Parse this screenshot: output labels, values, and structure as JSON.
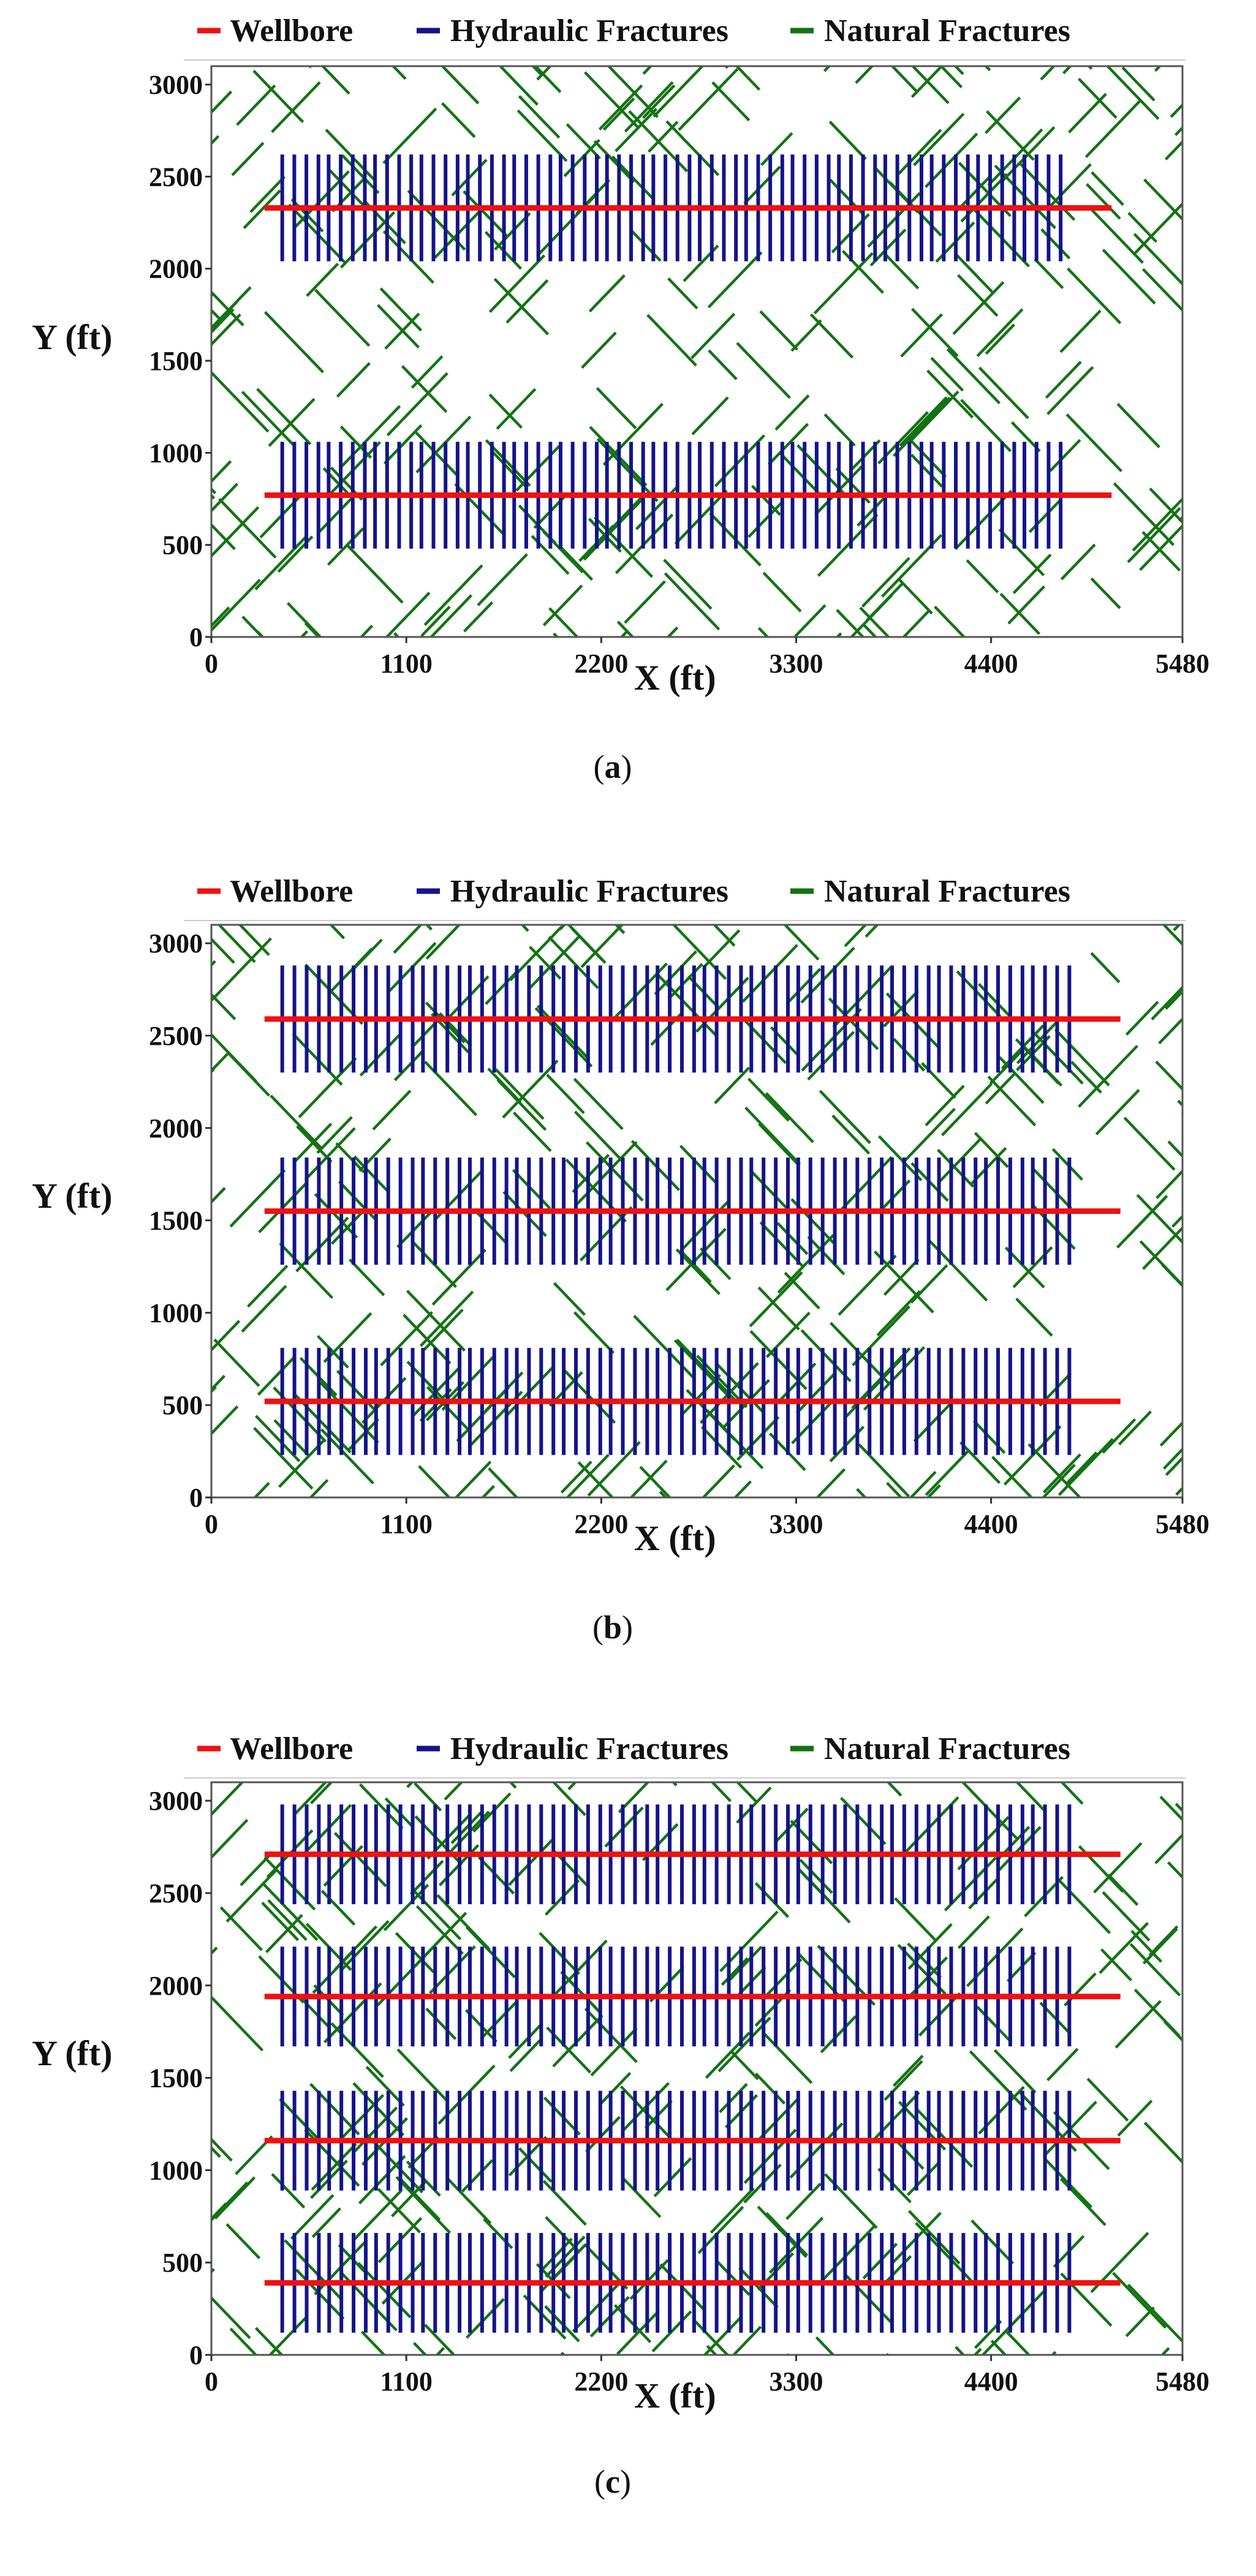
{
  "legend": [
    {
      "key": "wellbore",
      "label": "Wellbore",
      "color": "#ee1111"
    },
    {
      "key": "hydraulic",
      "label": "Hydraulic Fractures",
      "color": "#14148a"
    },
    {
      "key": "natural",
      "label": "Natural Fractures",
      "color": "#137313"
    }
  ],
  "chart_data": [
    {
      "type": "scatter",
      "panel": "a",
      "caption_open": "(",
      "caption_letter": "a",
      "caption_close": ")",
      "xlabel": "X (ft)",
      "ylabel": "Y (ft)",
      "xlim": [
        0,
        5480
      ],
      "ylim": [
        0,
        3100
      ],
      "x_ticks": [
        "0",
        "1100",
        "2200",
        "3300",
        "4400",
        "5480"
      ],
      "y_ticks": [
        "0",
        "500",
        "1000",
        "1500",
        "2000",
        "2500",
        "3000"
      ],
      "wellbores": [
        {
          "y": 770,
          "x_start": 300,
          "x_end": 5080,
          "frac_half_length": 290
        },
        {
          "y": 2330,
          "x_start": 300,
          "x_end": 5080,
          "frac_half_length": 290
        }
      ],
      "hydraulic_fractures": {
        "stages": 17,
        "clusters_per_stage": 4,
        "first_x": 400,
        "last_x": 4850
      },
      "natural_fractures": {
        "count": 300,
        "length_range_ft": [
          220,
          480
        ],
        "orientations_deg": [
          45,
          135
        ]
      }
    },
    {
      "type": "scatter",
      "panel": "b",
      "caption_open": "(",
      "caption_letter": "b",
      "caption_close": ")",
      "xlabel": "X (ft)",
      "ylabel": "Y (ft)",
      "xlim": [
        0,
        5480
      ],
      "ylim": [
        0,
        3100
      ],
      "x_ticks": [
        "0",
        "1100",
        "2200",
        "3300",
        "4400",
        "5480"
      ],
      "y_ticks": [
        "0",
        "500",
        "1000",
        "1500",
        "2000",
        "2500",
        "3000"
      ],
      "wellbores": [
        {
          "y": 520,
          "x_start": 300,
          "x_end": 5130,
          "frac_half_length": 290
        },
        {
          "y": 1550,
          "x_start": 300,
          "x_end": 5130,
          "frac_half_length": 290
        },
        {
          "y": 2590,
          "x_start": 300,
          "x_end": 5130,
          "frac_half_length": 290
        }
      ],
      "hydraulic_fractures": {
        "stages": 17,
        "clusters_per_stage": 4,
        "first_x": 400,
        "last_x": 4900
      },
      "natural_fractures": {
        "count": 300,
        "length_range_ft": [
          220,
          480
        ],
        "orientations_deg": [
          45,
          135
        ]
      }
    },
    {
      "type": "scatter",
      "panel": "c",
      "caption_open": "(",
      "caption_letter": "c",
      "caption_close": ")",
      "xlabel": "X (ft)",
      "ylabel": "Y (ft)",
      "xlim": [
        0,
        5480
      ],
      "ylim": [
        0,
        3100
      ],
      "x_ticks": [
        "0",
        "1100",
        "2200",
        "3300",
        "4400",
        "5480"
      ],
      "y_ticks": [
        "0",
        "500",
        "1000",
        "1500",
        "2000",
        "2500",
        "3000"
      ],
      "wellbores": [
        {
          "y": 390,
          "x_start": 300,
          "x_end": 5130,
          "frac_half_length": 270
        },
        {
          "y": 1160,
          "x_start": 300,
          "x_end": 5130,
          "frac_half_length": 270
        },
        {
          "y": 1940,
          "x_start": 300,
          "x_end": 5130,
          "frac_half_length": 270
        },
        {
          "y": 2710,
          "x_start": 300,
          "x_end": 5130,
          "frac_half_length": 270
        }
      ],
      "hydraulic_fractures": {
        "stages": 17,
        "clusters_per_stage": 4,
        "first_x": 400,
        "last_x": 4900
      },
      "natural_fractures": {
        "count": 300,
        "length_range_ft": [
          200,
          460
        ],
        "orientations_deg": [
          45,
          135
        ]
      }
    }
  ]
}
